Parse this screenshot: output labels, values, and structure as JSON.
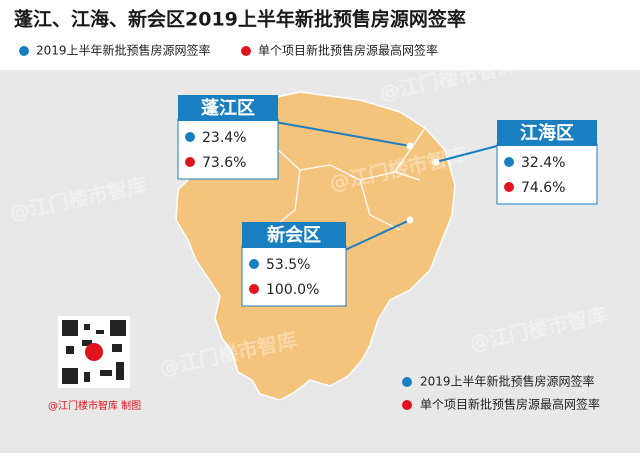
{
  "title": "蓬江、江海、新会区2019上半年新批预售房源网签率",
  "legend": [
    "2019上半年新批预售房源网签率",
    "单个项目新批预售房源最高网签率"
  ],
  "districts": [
    {
      "name": "蓬江区",
      "rate": "23.4%",
      "max_rate": "73.6%"
    },
    {
      "name": "江海区",
      "rate": "32.4%",
      "max_rate": "74.6%"
    },
    {
      "name": "新会区",
      "rate": "53.5%",
      "max_rate": "100.0%"
    }
  ],
  "watermark": "@江门楼市智库",
  "credit": "@江门楼市智库 制图"
}
